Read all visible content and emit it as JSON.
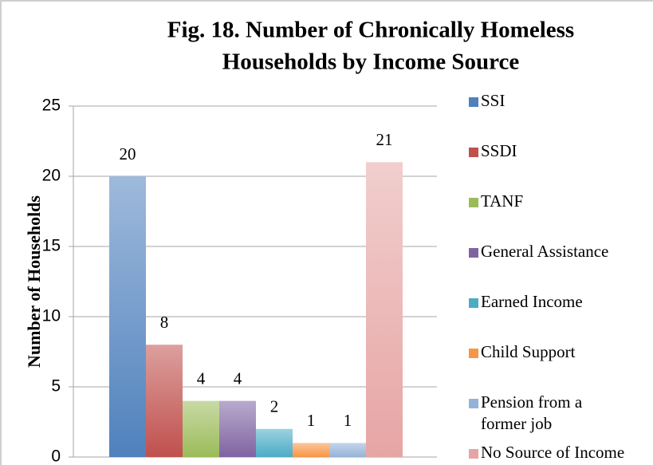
{
  "chart_data": {
    "type": "bar",
    "title": [
      "Fig. 18. Number of Chronically Homeless",
      "Households by Income Source"
    ],
    "y_label": "Number of Households",
    "categories": [
      null
    ],
    "series": [
      {
        "name": "SSI",
        "color": "#4f81bd",
        "values": [
          20
        ]
      },
      {
        "name": "SSDI",
        "color": "#c0504d",
        "values": [
          8
        ]
      },
      {
        "name": "TANF",
        "color": "#9bbb59",
        "values": [
          4
        ]
      },
      {
        "name": "General Assistance",
        "color": "#8064a2",
        "values": [
          4
        ]
      },
      {
        "name": "Earned Income",
        "color": "#4bacc6",
        "values": [
          2
        ]
      },
      {
        "name": "Child Support",
        "color": "#f79646",
        "values": [
          1
        ]
      },
      {
        "name": "Pension from a former job",
        "color": "#95b3d7",
        "values": [
          1
        ]
      },
      {
        "name": "No Source of Income",
        "color": "#e6a5a4",
        "values": [
          21
        ]
      }
    ],
    "ylim": [
      0,
      25
    ],
    "yticks": [
      0,
      5,
      10,
      15,
      20,
      25
    ],
    "grid": true,
    "legend": "right",
    "data_labels": true
  }
}
